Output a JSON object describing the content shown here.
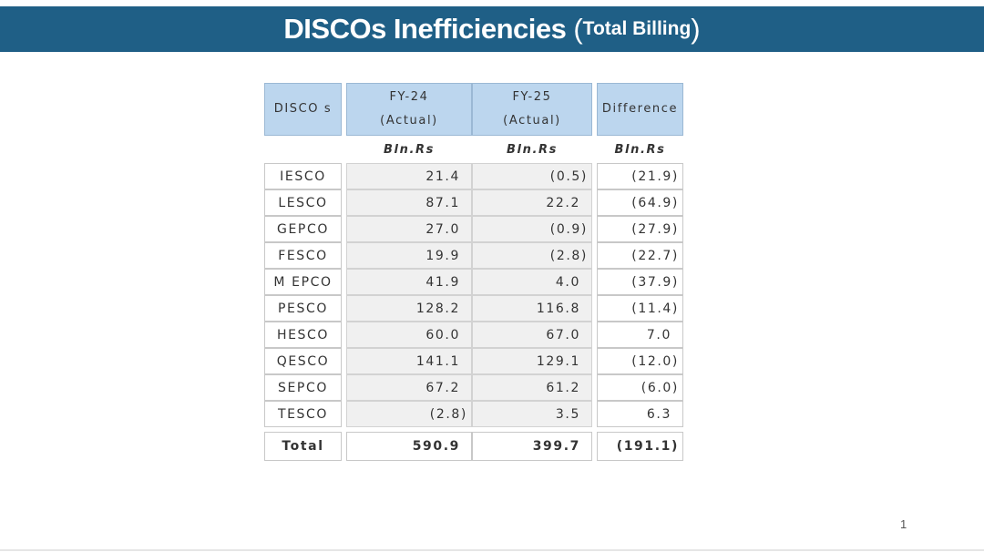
{
  "slide": {
    "title_main": "DISCOs Inefficiencies",
    "title_open": "(",
    "title_sub": "Total Billing",
    "title_close": ")",
    "page_number": "1"
  },
  "table": {
    "headers": {
      "col1": "DISCO s",
      "col2_line1": "FY-24",
      "col2_line2": "(Actual)",
      "col3_line1": "FY-25",
      "col3_line2": "(Actual)",
      "col4": "Difference"
    },
    "units": [
      "Bln.Rs",
      "Bln.Rs",
      "Bln.Rs"
    ],
    "rows": [
      {
        "disco": "IESCO",
        "fy24": "21.4",
        "fy25": "(0.5)",
        "diff": "(21.9)"
      },
      {
        "disco": "LESCO",
        "fy24": "87.1",
        "fy25": "22.2",
        "diff": "(64.9)"
      },
      {
        "disco": "GEPCO",
        "fy24": "27.0",
        "fy25": "(0.9)",
        "diff": "(27.9)"
      },
      {
        "disco": "FESCO",
        "fy24": "19.9",
        "fy25": "(2.8)",
        "diff": "(22.7)"
      },
      {
        "disco": "M EPCO",
        "fy24": "41.9",
        "fy25": "4.0",
        "diff": "(37.9)"
      },
      {
        "disco": "PESCO",
        "fy24": "128.2",
        "fy25": "116.8",
        "diff": "(11.4)"
      },
      {
        "disco": "HESCO",
        "fy24": "60.0",
        "fy25": "67.0",
        "diff": "7.0"
      },
      {
        "disco": "QESCO",
        "fy24": "141.1",
        "fy25": "129.1",
        "diff": "(12.0)"
      },
      {
        "disco": "SEPCO",
        "fy24": "67.2",
        "fy25": "61.2",
        "diff": "(6.0)"
      },
      {
        "disco": "TESCO",
        "fy24": "(2.8)",
        "fy25": "3.5",
        "diff": "6.3"
      }
    ],
    "total": {
      "label": "Total",
      "fy24": "590.9",
      "fy25": "399.7",
      "diff": "(191.1)"
    }
  }
}
